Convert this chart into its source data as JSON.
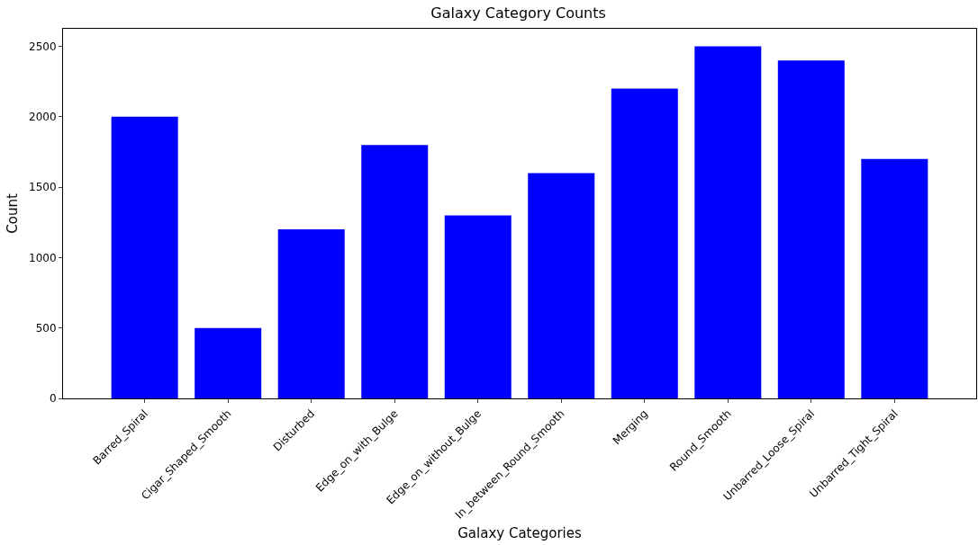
{
  "chart_data": {
    "type": "bar",
    "title": "Galaxy Category Counts",
    "xlabel": "Galaxy Categories",
    "ylabel": "Count",
    "categories": [
      "Barred_Spiral",
      "Cigar_Shaped_Smooth",
      "Disturbed",
      "Edge_on_with_Bulge",
      "Edge_on_without_Bulge",
      "In_between_Round_Smooth",
      "Merging",
      "Round_Smooth",
      "Unbarred_Loose_Spiral",
      "Unbarred_Tight_Spiral"
    ],
    "values": [
      2000,
      500,
      1200,
      1800,
      1300,
      1600,
      2200,
      2500,
      2400,
      1700
    ],
    "color": "#0000ff",
    "ylim": [
      0,
      2625
    ],
    "yticks": [
      0,
      500,
      1000,
      1500,
      2000,
      2500
    ],
    "grid": false
  }
}
